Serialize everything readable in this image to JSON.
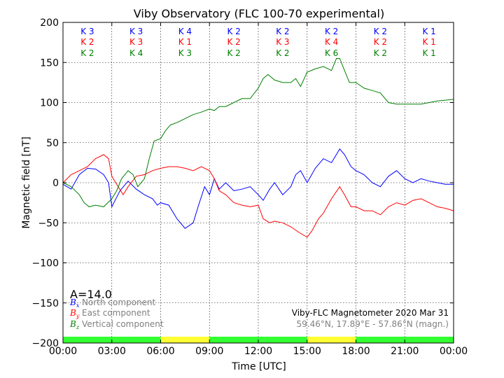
{
  "chart_data": {
    "type": "line",
    "title": "Viby Observatory (FLC 100-70 experimental)",
    "xlabel": "Time [UTC]",
    "ylabel": "Magnetic field [nT]",
    "xlim": [
      0,
      24
    ],
    "ylim": [
      -200,
      200
    ],
    "x_ticks": [
      {
        "value": 0,
        "label": "00:00"
      },
      {
        "value": 3,
        "label": "03:00"
      },
      {
        "value": 6,
        "label": "06:00"
      },
      {
        "value": 9,
        "label": "09:00"
      },
      {
        "value": 12,
        "label": "12:00"
      },
      {
        "value": 15,
        "label": "15:00"
      },
      {
        "value": 18,
        "label": "18:00"
      },
      {
        "value": 21,
        "label": "21:00"
      },
      {
        "value": 24,
        "label": "00:00"
      }
    ],
    "y_ticks": [
      {
        "value": 200,
        "label": "200"
      },
      {
        "value": 150,
        "label": "150"
      },
      {
        "value": 100,
        "label": "100"
      },
      {
        "value": 50,
        "label": "50"
      },
      {
        "value": 0,
        "label": "0"
      },
      {
        "value": -50,
        "label": "−50"
      },
      {
        "value": -100,
        "label": "−100"
      },
      {
        "value": -150,
        "label": "−150"
      },
      {
        "value": -200,
        "label": "−200"
      }
    ],
    "grid": true,
    "series": [
      {
        "name": "North component",
        "symbol": "B",
        "subscript": "x",
        "color": "#0000ff",
        "x": [
          0,
          0.5,
          1,
          1.5,
          2,
          2.5,
          2.8,
          3,
          3.2,
          3.5,
          4,
          4.5,
          5,
          5.5,
          5.8,
          6,
          6.5,
          7,
          7.5,
          8,
          8.3,
          8.7,
          9,
          9.3,
          9.6,
          10,
          10.5,
          11,
          11.5,
          12,
          12.3,
          12.7,
          13,
          13.5,
          14,
          14.3,
          14.6,
          15,
          15.5,
          16,
          16.5,
          17,
          17.3,
          17.7,
          18,
          18.5,
          19,
          19.5,
          20,
          20.5,
          21,
          21.5,
          22,
          22.5,
          23,
          23.5,
          24
        ],
        "y": [
          -2,
          -8,
          10,
          18,
          17,
          10,
          0,
          -30,
          -22,
          -10,
          2,
          -8,
          -15,
          -20,
          -28,
          -25,
          -28,
          -45,
          -57,
          -50,
          -30,
          -5,
          -15,
          5,
          -8,
          0,
          -10,
          -8,
          -5,
          -15,
          -22,
          -8,
          0,
          -15,
          -5,
          10,
          15,
          0,
          18,
          30,
          25,
          42,
          35,
          20,
          15,
          10,
          0,
          -5,
          8,
          15,
          5,
          0,
          5,
          2,
          0,
          -2,
          -2
        ]
      },
      {
        "name": "East component",
        "symbol": "B",
        "subscript": "y",
        "color": "#ff0000",
        "x": [
          0,
          0.5,
          1,
          1.5,
          2,
          2.5,
          2.8,
          3,
          3.3,
          3.7,
          4,
          4.5,
          5,
          5.5,
          6,
          6.5,
          7,
          7.5,
          8,
          8.5,
          9,
          9.3,
          9.6,
          10,
          10.5,
          11,
          11.5,
          12,
          12.3,
          12.7,
          13,
          13.5,
          14,
          14.5,
          15,
          15.3,
          15.7,
          16,
          16.5,
          17,
          17.3,
          17.7,
          18,
          18.5,
          19,
          19.5,
          20,
          20.5,
          21,
          21.5,
          22,
          22.5,
          23,
          23.5,
          24
        ],
        "y": [
          0,
          10,
          15,
          20,
          30,
          35,
          30,
          8,
          -2,
          -15,
          -5,
          8,
          10,
          15,
          18,
          20,
          20,
          18,
          15,
          20,
          15,
          5,
          -10,
          -15,
          -25,
          -28,
          -30,
          -28,
          -45,
          -50,
          -48,
          -50,
          -55,
          -62,
          -68,
          -60,
          -45,
          -38,
          -20,
          -5,
          -15,
          -30,
          -30,
          -35,
          -35,
          -40,
          -30,
          -25,
          -28,
          -22,
          -20,
          -25,
          -30,
          -32,
          -35
        ]
      },
      {
        "name": "Vertical component",
        "symbol": "B",
        "subscript": "z",
        "color": "#008000",
        "x": [
          0,
          0.5,
          1,
          1.3,
          1.6,
          2,
          2.5,
          3,
          3.3,
          3.6,
          4,
          4.3,
          4.6,
          5,
          5.3,
          5.6,
          6,
          6.3,
          6.6,
          7,
          7.5,
          8,
          8.5,
          9,
          9.3,
          9.6,
          10,
          10.5,
          11,
          11.5,
          12,
          12.3,
          12.6,
          13,
          13.5,
          14,
          14.3,
          14.6,
          15,
          15.5,
          16,
          16.5,
          16.8,
          17,
          17.3,
          17.6,
          18,
          18.5,
          19,
          19.5,
          20,
          20.5,
          21,
          21.5,
          22,
          22.5,
          23,
          23.5,
          24
        ],
        "y": [
          0,
          -5,
          -15,
          -25,
          -30,
          -28,
          -30,
          -20,
          -10,
          5,
          15,
          10,
          -5,
          5,
          30,
          52,
          55,
          65,
          72,
          75,
          80,
          85,
          88,
          92,
          90,
          95,
          95,
          100,
          105,
          105,
          118,
          130,
          135,
          128,
          125,
          125,
          130,
          120,
          138,
          142,
          145,
          140,
          155,
          155,
          140,
          125,
          125,
          118,
          115,
          112,
          100,
          98,
          98,
          98,
          98,
          100,
          102,
          103,
          104
        ]
      }
    ],
    "k_indices": {
      "rows": [
        {
          "component": "North",
          "color": "#0000ff",
          "values": [
            "K 3",
            "K 3",
            "K 4",
            "K 2",
            "K 2",
            "K 2",
            "K 2",
            "K 1"
          ]
        },
        {
          "component": "East",
          "color": "#ff0000",
          "values": [
            "K 2",
            "K 3",
            "K 1",
            "K 2",
            "K 3",
            "K 4",
            "K 2",
            "K 1"
          ]
        },
        {
          "component": "Vertical",
          "color": "#008000",
          "values": [
            "K 2",
            "K 4",
            "K 3",
            "K 2",
            "K 2",
            "K 6",
            "K 2",
            "K 1"
          ]
        }
      ]
    },
    "activity_bar": [
      {
        "from": 0,
        "to": 6,
        "color": "#33ff33"
      },
      {
        "from": 6,
        "to": 9,
        "color": "#ffff33"
      },
      {
        "from": 9,
        "to": 15,
        "color": "#33ff33"
      },
      {
        "from": 15,
        "to": 18,
        "color": "#ffff33"
      },
      {
        "from": 18,
        "to": 24,
        "color": "#33ff33"
      }
    ],
    "a_index": "A=14.0",
    "info_line1": "Viby-FLC Magnetometer 2020 Mar 31",
    "info_line2": "59.46°N, 17.89°E - 57.86°N (magn.)"
  }
}
